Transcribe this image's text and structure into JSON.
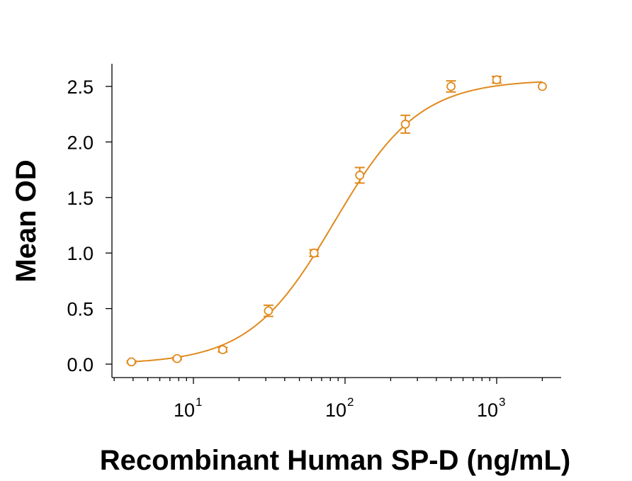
{
  "chart_data": {
    "type": "scatter",
    "title": "",
    "xlabel": "Recombinant Human SP-D (ng/mL)",
    "ylabel": "Mean OD",
    "xscale": "log",
    "xlim": [
      3,
      2500
    ],
    "ylim": [
      -0.1,
      2.7
    ],
    "x_ticks": [
      {
        "base": "10",
        "exp": "1",
        "value": 10
      },
      {
        "base": "10",
        "exp": "2",
        "value": 100
      },
      {
        "base": "10",
        "exp": "3",
        "value": 1000
      }
    ],
    "y_ticks": [
      "0.0",
      "0.5",
      "1.0",
      "1.5",
      "2.0",
      "2.5"
    ],
    "grid": false,
    "legend": "none",
    "color": "#E08A1E",
    "series": [
      {
        "x": [
          3.9,
          7.8,
          15.6,
          31.25,
          62.5,
          125,
          250,
          500,
          1000,
          2000
        ],
        "y": [
          0.02,
          0.05,
          0.13,
          0.48,
          1.0,
          1.7,
          2.16,
          2.5,
          2.56,
          2.5
        ],
        "err": [
          0.01,
          0.01,
          0.02,
          0.05,
          0.03,
          0.07,
          0.08,
          0.05,
          0.03,
          0.0
        ]
      }
    ],
    "fit": {
      "model": "4PL",
      "bottom": 0.0,
      "top": 2.56,
      "ec50": 85,
      "hill": 1.55
    }
  }
}
